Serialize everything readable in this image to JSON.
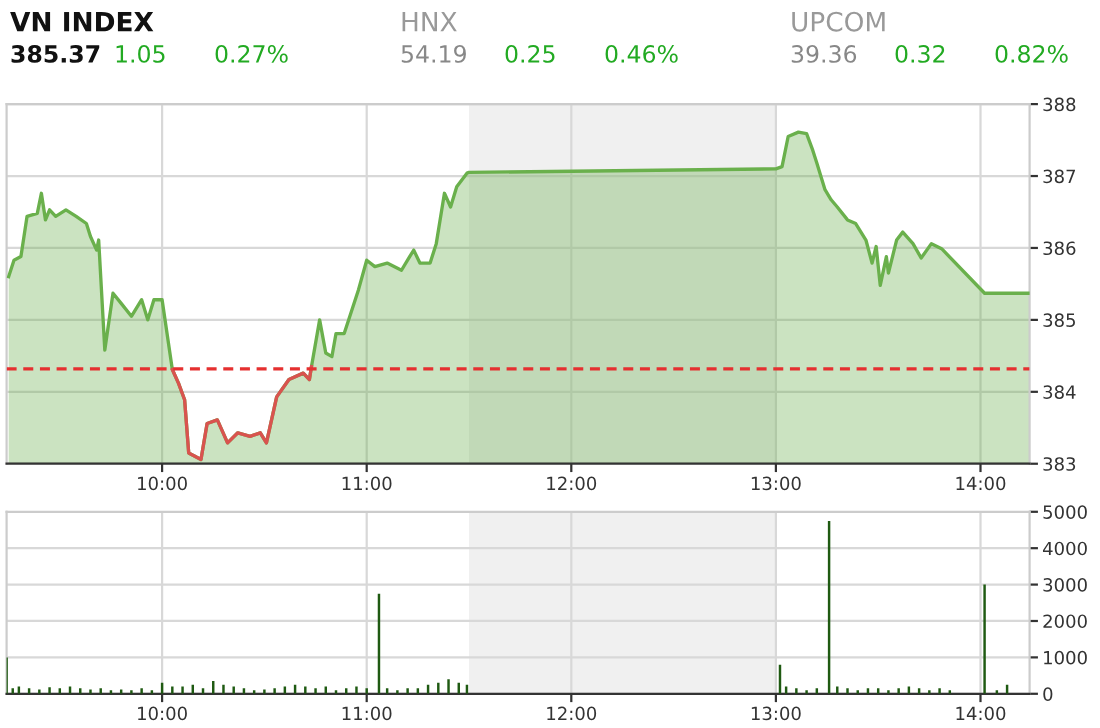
{
  "chart_data": [
    {
      "type": "area",
      "annotations": [
        "VN INDEX",
        "385.37",
        "1.05",
        "0.27%",
        "HNX",
        "54.19",
        "0.25",
        "0.46%",
        "UPCOM",
        "39.36",
        "0.32",
        "0.82%"
      ],
      "series": [
        {
          "type": "area",
          "color": "#6ab04c",
          "x": [
            9.25,
            9.276,
            9.31,
            9.34,
            9.39,
            9.41,
            9.43,
            9.45,
            9.48,
            9.53,
            9.58,
            9.63,
            9.65,
            9.68,
            9.69,
            9.72,
            9.76,
            9.8,
            9.85,
            9.9,
            9.93,
            9.96,
            10.0,
            10.05,
            10.08,
            10.11,
            10.13,
            10.19,
            10.22,
            10.27,
            10.32,
            10.37,
            10.43,
            10.48,
            10.51,
            10.56,
            10.62,
            10.69,
            10.72,
            10.73,
            10.77,
            10.8,
            10.83,
            10.85,
            10.89,
            10.96,
            11.0,
            11.04,
            11.1,
            11.17,
            11.21,
            11.23,
            11.26,
            11.31,
            11.34,
            11.38,
            11.41,
            11.44,
            11.49,
            11.5,
            13.0,
            13.03,
            13.06,
            13.11,
            13.15,
            13.18,
            13.2,
            13.24,
            13.27,
            13.3,
            13.35,
            13.39,
            13.44,
            13.47,
            13.49,
            13.51,
            13.54,
            13.55,
            13.59,
            13.62,
            13.67,
            13.71,
            13.76,
            13.81,
            14.02,
            14.24
          ],
          "values": [
            385.6,
            385.83,
            385.88,
            386.44,
            386.48,
            386.76,
            386.39,
            386.53,
            386.44,
            386.53,
            386.44,
            386.34,
            386.16,
            385.97,
            386.11,
            384.58,
            385.37,
            385.23,
            385.05,
            385.28,
            385.0,
            385.28,
            385.28,
            384.31,
            384.12,
            383.89,
            383.15,
            383.06,
            383.56,
            383.61,
            383.29,
            383.43,
            383.38,
            383.43,
            383.29,
            383.93,
            384.17,
            384.26,
            384.17,
            384.35,
            385.0,
            384.54,
            384.49,
            384.81,
            384.81,
            385.42,
            385.83,
            385.74,
            385.79,
            385.69,
            385.88,
            385.97,
            385.79,
            385.79,
            386.06,
            386.76,
            386.57,
            386.85,
            387.04,
            387.05,
            387.1,
            387.13,
            387.55,
            387.61,
            387.59,
            387.36,
            387.18,
            386.81,
            386.67,
            386.57,
            386.39,
            386.34,
            386.11,
            385.79,
            386.02,
            385.48,
            385.88,
            385.65,
            386.11,
            386.22,
            386.06,
            385.86,
            386.06,
            385.99,
            385.37,
            385.37
          ]
        },
        {
          "type": "line",
          "color": "#d9534f",
          "x": [
            10.05,
            10.08,
            10.11,
            10.13,
            10.19,
            10.22,
            10.27,
            10.32,
            10.37,
            10.43,
            10.48,
            10.51,
            10.56,
            10.62,
            10.69,
            10.72,
            10.73
          ],
          "values": [
            384.31,
            384.12,
            383.89,
            383.15,
            383.06,
            383.56,
            383.61,
            383.29,
            383.43,
            383.38,
            383.43,
            383.29,
            383.93,
            384.17,
            384.26,
            384.17,
            384.35
          ]
        }
      ],
      "xlim": [
        9.24,
        14.24
      ],
      "xticks": [
        {
          "value": 10,
          "label": "10:00"
        },
        {
          "value": 11,
          "label": "11:00"
        },
        {
          "value": 12,
          "label": "12:00"
        },
        {
          "value": 13,
          "label": "13:00"
        },
        {
          "value": 14,
          "label": "14:00"
        }
      ],
      "ylim": [
        383,
        388
      ],
      "yticks": [
        383,
        384,
        385,
        386,
        387,
        388
      ],
      "grid": true,
      "ref_lines": [
        {
          "axis": "y",
          "value": 384.32,
          "color": "#e53030",
          "line_style": "dashed"
        }
      ],
      "bands": [
        {
          "axis": "x",
          "from": 11.5,
          "to": 13.0,
          "color": "#f0f0f0"
        }
      ]
    },
    {
      "type": "bar",
      "color": "#1f5a12",
      "x": [
        9.24,
        9.27,
        9.3,
        9.35,
        9.4,
        9.45,
        9.5,
        9.55,
        9.6,
        9.65,
        9.7,
        9.75,
        9.8,
        9.85,
        9.9,
        9.95,
        10.0,
        10.05,
        10.1,
        10.15,
        10.2,
        10.25,
        10.3,
        10.35,
        10.4,
        10.45,
        10.5,
        10.55,
        10.6,
        10.65,
        10.7,
        10.75,
        10.8,
        10.85,
        10.9,
        10.95,
        11.0,
        11.06,
        11.1,
        11.15,
        11.2,
        11.25,
        11.3,
        11.35,
        11.4,
        11.45,
        11.49,
        13.02,
        13.05,
        13.1,
        13.15,
        13.2,
        13.26,
        13.3,
        13.35,
        13.4,
        13.45,
        13.5,
        13.55,
        13.6,
        13.65,
        13.7,
        13.75,
        13.8,
        13.85,
        14.02,
        14.08,
        14.13
      ],
      "values": [
        1000,
        150,
        200,
        150,
        120,
        180,
        150,
        200,
        150,
        120,
        150,
        100,
        120,
        100,
        150,
        100,
        300,
        200,
        200,
        250,
        150,
        350,
        250,
        200,
        150,
        100,
        120,
        150,
        200,
        250,
        200,
        150,
        200,
        100,
        150,
        200,
        150,
        2750,
        150,
        100,
        150,
        150,
        250,
        300,
        400,
        300,
        250,
        800,
        200,
        150,
        100,
        150,
        4750,
        200,
        150,
        100,
        150,
        150,
        100,
        150,
        200,
        150,
        100,
        150,
        100,
        3000,
        100,
        250
      ],
      "xlim": [
        9.24,
        14.24
      ],
      "xticks": [
        {
          "value": 10,
          "label": "10:00"
        },
        {
          "value": 11,
          "label": "11:00"
        },
        {
          "value": 12,
          "label": "12:00"
        },
        {
          "value": 13,
          "label": "13:00"
        },
        {
          "value": 14,
          "label": "14:00"
        }
      ],
      "ylim": [
        0,
        5000
      ],
      "yticks": [
        0,
        1000,
        2000,
        3000,
        4000,
        5000
      ],
      "grid": true,
      "bands": [
        {
          "axis": "x",
          "from": 11.5,
          "to": 13.0,
          "color": "#f0f0f0"
        }
      ]
    }
  ]
}
